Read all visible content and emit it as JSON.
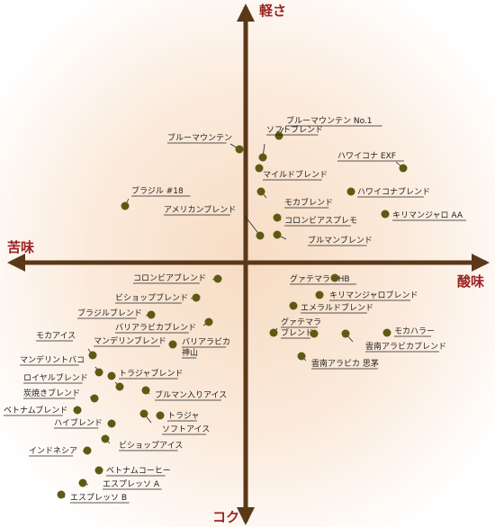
{
  "axes": {
    "top": "軽さ",
    "bottom": "コク",
    "left": "苦味",
    "right": "酸味"
  },
  "colors": {
    "axis": "#5a3818",
    "dot": "#5e5a14",
    "leader": "#222222",
    "axis_text": "#9b2222"
  },
  "items": [
    "ブルーマウンテン No.1",
    "ブルーマウンテン",
    "ソフトブレンド",
    "ハワイコナ EXF",
    "マイルドブレンド",
    "ハワイコナブレンド",
    "ブラジル #18",
    "モカブレンド",
    "アメリカンブレンド",
    "コロンビアスプレモ",
    "キリマンジャロ AA",
    "ブルマンブレンド",
    "コロンビアブレンド",
    "グァテマラ SHB",
    "ビショップブレンド",
    "キリマンジャロブレンド",
    "エメラルドブレンド",
    "ブラジルブレンド",
    "バリアラビカブレンド",
    "モカアイス",
    "マンデリンブレンド",
    "バリアラビカ",
    "神山",
    "グァテマラ",
    "ブレンド",
    "モカハラー",
    "雲南アラビカブレンド",
    "マンデリントバコ",
    "トラジャブレンド",
    "雲南アラビカ 思茅",
    "ロイヤルブレンド",
    "炭焼きブレンド",
    "ブルマン入りアイス",
    "ベトナムブレンド",
    "トラジャ",
    "ハイブレンド",
    "ソフトアイス",
    "ビショップアイス",
    "インドネシア",
    "ベトナムコーヒー",
    "エスプレッソ A",
    "エスプレッソ B"
  ]
}
